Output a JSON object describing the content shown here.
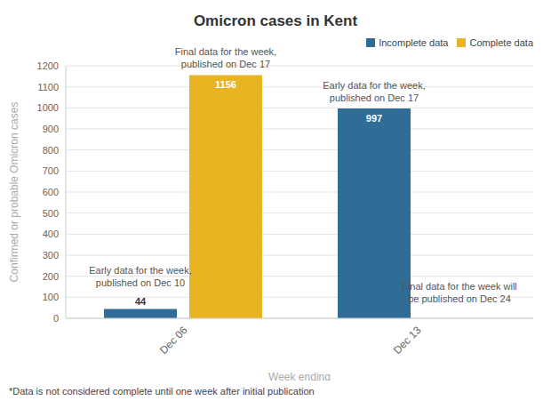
{
  "chart_data": {
    "type": "bar",
    "title": "Omicron cases in Kent",
    "x_label": "Week ending",
    "y_label": "Confirmed or probable Omicron cases",
    "categories": [
      "Dec 06",
      "Dec 13"
    ],
    "series": [
      {
        "name": "Incomplete data",
        "color": "#2f6d97",
        "values": [
          44,
          997
        ]
      },
      {
        "name": "Complete data",
        "color": "#e9b422",
        "values": [
          1156,
          null
        ]
      }
    ],
    "ylim": [
      0,
      1200
    ],
    "yticks": [
      0,
      100,
      200,
      300,
      400,
      500,
      600,
      700,
      800,
      900,
      1000,
      1100,
      1200
    ],
    "grid": true,
    "legend": "upper right",
    "data_labels": true,
    "annotations": [
      {
        "category": "Dec 06",
        "series": "Incomplete data",
        "text": [
          "Early data for the week,",
          "published on Dec 10"
        ]
      },
      {
        "category": "Dec 06",
        "series": "Complete data",
        "text": [
          "Final data for the week,",
          "published on Dec 17"
        ]
      },
      {
        "category": "Dec 13",
        "series": "Incomplete data",
        "text": [
          "Early data for the week,",
          "published on Dec 17"
        ]
      },
      {
        "category": "Dec 13",
        "series": "Complete data",
        "text": [
          "Final data for the week will",
          "be published on Dec 24"
        ]
      }
    ],
    "footnote": "*Data is not considered complete until one week after initial publication"
  }
}
